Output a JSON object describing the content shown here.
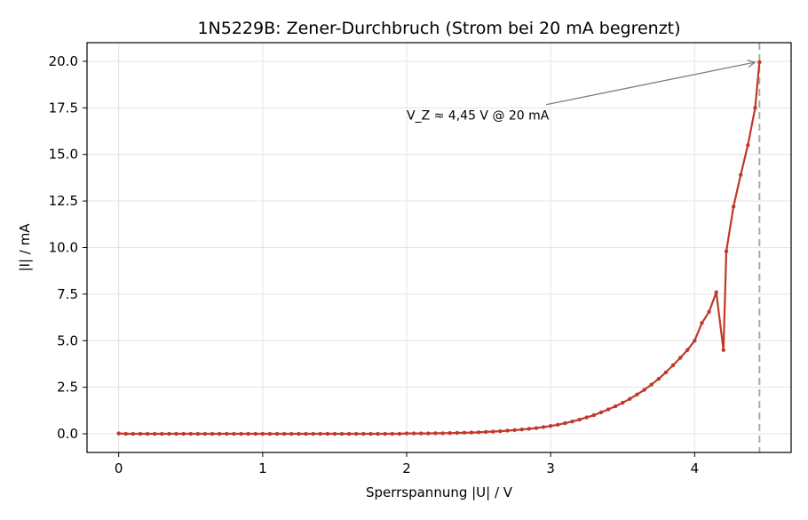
{
  "chart_data": {
    "type": "line",
    "title": "1N5229B: Zener-Durchbruch (Strom bei 20 mA begrenzt)",
    "xlabel": "Sperrspannung |U| / V",
    "ylabel": "|I| / mA",
    "xlim": [
      -0.22,
      4.67
    ],
    "ylim": [
      -1.0,
      21.0
    ],
    "xticks": [
      0,
      1,
      2,
      3,
      4
    ],
    "yticks": [
      0.0,
      2.5,
      5.0,
      7.5,
      10.0,
      12.5,
      15.0,
      17.5,
      20.0
    ],
    "xtick_labels": [
      "0",
      "1",
      "2",
      "3",
      "4"
    ],
    "ytick_labels": [
      "0.0",
      "2.5",
      "5.0",
      "7.5",
      "10.0",
      "12.5",
      "15.0",
      "17.5",
      "20.0"
    ],
    "grid": true,
    "colors": {
      "series": "#c0392b",
      "vline": "#aaaaaa",
      "arrow": "#808080"
    },
    "series": [
      {
        "x": [
          0,
          0.05,
          0.1,
          0.15,
          0.2,
          0.25,
          0.3,
          0.35,
          0.4,
          0.45,
          0.5,
          0.55,
          0.6,
          0.65,
          0.7,
          0.75,
          0.8,
          0.85,
          0.9,
          0.95,
          1.0,
          1.05,
          1.1,
          1.15,
          1.2,
          1.25,
          1.3,
          1.35,
          1.4,
          1.45,
          1.5,
          1.55,
          1.6,
          1.65,
          1.7,
          1.75,
          1.8,
          1.85,
          1.9,
          1.95,
          2.0,
          2.05,
          2.1,
          2.15,
          2.2,
          2.25,
          2.3,
          2.35,
          2.4,
          2.45,
          2.5,
          2.55,
          2.6,
          2.65,
          2.7,
          2.75,
          2.8,
          2.85,
          2.9,
          2.95,
          3.0,
          3.05,
          3.1,
          3.15,
          3.2,
          3.25,
          3.3,
          3.35,
          3.4,
          3.45,
          3.5,
          3.55,
          3.6,
          3.65,
          3.7,
          3.75,
          3.8,
          3.85,
          3.9,
          3.95,
          4.0,
          4.05,
          4.1,
          4.15,
          4.2,
          4.22,
          4.27,
          4.32,
          4.37,
          4.42,
          4.45
        ],
        "values": [
          0.02,
          0.0,
          0.0,
          0.0,
          0.0,
          0.0,
          0.0,
          0.0,
          0.0,
          0.0,
          0.0,
          0.0,
          0.0,
          0.0,
          0.0,
          0.0,
          0.0,
          0.0,
          0.0,
          0.0,
          0.0,
          0.0,
          0.0,
          0.0,
          0.0,
          0.0,
          0.0,
          0.0,
          0.0,
          0.0,
          0.0,
          0.0,
          0.0,
          0.0,
          0.0,
          0.0,
          0.0,
          0.0,
          0.0,
          0.0,
          0.02,
          0.02,
          0.02,
          0.02,
          0.03,
          0.03,
          0.04,
          0.05,
          0.06,
          0.07,
          0.08,
          0.1,
          0.12,
          0.14,
          0.17,
          0.2,
          0.23,
          0.27,
          0.31,
          0.36,
          0.42,
          0.49,
          0.57,
          0.66,
          0.76,
          0.88,
          1.0,
          1.15,
          1.31,
          1.48,
          1.67,
          1.88,
          2.11,
          2.36,
          2.64,
          2.95,
          3.3,
          3.68,
          4.08,
          4.5,
          5.0,
          5.95,
          6.55,
          7.6,
          4.5,
          9.8,
          12.2,
          13.9,
          15.5,
          17.5,
          19.95
        ]
      }
    ],
    "vline": {
      "x": 4.45
    },
    "annotation": {
      "text": "V_Z ≈ 4,45 V @ 20 mA",
      "xy": [
        4.45,
        19.95
      ],
      "xytext": [
        2.0,
        17.1
      ]
    }
  }
}
